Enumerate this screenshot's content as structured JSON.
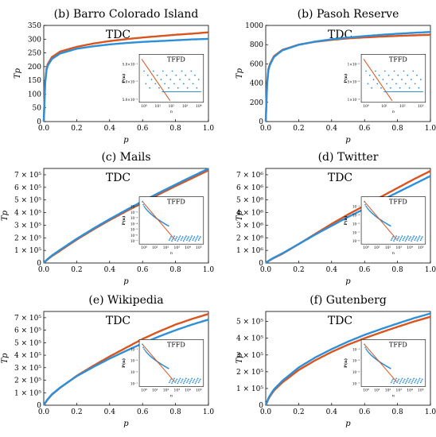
{
  "colors": {
    "model": "#d9541e",
    "data": "#2e8fd9"
  },
  "chart_data": [
    {
      "type": "line",
      "title": "(b) Barro Colorado Island",
      "panel_label": "TDC",
      "xlabel": "p",
      "ylabel": "T_p",
      "xlim": [
        0,
        1
      ],
      "ylim": [
        0,
        350
      ],
      "xticks": [
        "0.0",
        "0.2",
        "0.4",
        "0.6",
        "0.8",
        "1.0"
      ],
      "yticks": [
        "0",
        "50",
        "100",
        "150",
        "200",
        "250",
        "300",
        "350"
      ],
      "series": [
        {
          "key": "model",
          "x": [
            0,
            0.01,
            0.02,
            0.05,
            0.1,
            0.2,
            0.3,
            0.4,
            0.5,
            0.6,
            0.7,
            0.8,
            0.9,
            1.0
          ],
          "y": [
            0,
            170,
            205,
            235,
            255,
            272,
            284,
            293,
            300,
            306,
            311,
            316,
            320,
            325
          ]
        },
        {
          "key": "data",
          "x": [
            0,
            0.01,
            0.02,
            0.05,
            0.1,
            0.2,
            0.3,
            0.4,
            0.5,
            0.6,
            0.7,
            0.8,
            0.9,
            1.0
          ],
          "y": [
            0,
            165,
            200,
            228,
            248,
            265,
            274,
            281,
            286,
            290,
            293,
            296,
            299,
            301
          ]
        }
      ],
      "inset": {
        "label": "TFFD",
        "ylabel": "P(n)",
        "xlabel": "n",
        "kind": "sparse",
        "yticks": [
          "5.0×10⁻¹",
          "1.0×10⁻²",
          "5.0×10⁻³"
        ],
        "xticks": [
          "10⁰",
          "10¹",
          "10²",
          "10³",
          "10⁴"
        ]
      }
    },
    {
      "type": "line",
      "title": "(b) Pasoh Reserve",
      "panel_label": "TDC",
      "xlabel": "p",
      "ylabel": "T_p",
      "xlim": [
        0,
        1
      ],
      "ylim": [
        0,
        1000
      ],
      "xticks": [
        "0.0",
        "0.2",
        "0.4",
        "0.6",
        "0.8",
        "1.0"
      ],
      "yticks": [
        "0",
        "200",
        "400",
        "600",
        "800",
        "1000"
      ],
      "series": [
        {
          "key": "model",
          "x": [
            0,
            0.01,
            0.02,
            0.05,
            0.1,
            0.2,
            0.3,
            0.4,
            0.5,
            0.6,
            0.7,
            0.8,
            0.9,
            1.0
          ],
          "y": [
            0,
            480,
            580,
            680,
            745,
            800,
            830,
            850,
            865,
            875,
            884,
            891,
            897,
            903
          ]
        },
        {
          "key": "data",
          "x": [
            0,
            0.01,
            0.02,
            0.05,
            0.1,
            0.2,
            0.3,
            0.4,
            0.5,
            0.6,
            0.7,
            0.8,
            0.9,
            1.0
          ],
          "y": [
            0,
            470,
            570,
            672,
            740,
            798,
            832,
            856,
            874,
            889,
            902,
            913,
            923,
            932
          ]
        }
      ],
      "inset": {
        "label": "TFFD",
        "ylabel": "P(n)",
        "xlabel": "n",
        "kind": "sparse",
        "yticks": [
          "1×10⁻²",
          "5×10⁻³",
          "1×10⁻³"
        ],
        "xticks": [
          "10⁰",
          "10¹",
          "10²",
          "10³"
        ]
      }
    },
    {
      "type": "line",
      "title": "(c) Mails",
      "panel_label": "TDC",
      "xlabel": "p",
      "ylabel": "T_p",
      "xlim": [
        0,
        1
      ],
      "ylim": [
        0,
        750000
      ],
      "xticks": [
        "0.0",
        "0.2",
        "0.4",
        "0.6",
        "0.8",
        "1.0"
      ],
      "yticks": [
        "0",
        "1 × 10⁵",
        "2 × 10⁵",
        "3 × 10⁵",
        "4 × 10⁵",
        "5 × 10⁵",
        "6 × 10⁵",
        "7 × 10⁵"
      ],
      "series": [
        {
          "key": "model",
          "x": [
            0,
            0.02,
            0.05,
            0.1,
            0.2,
            0.3,
            0.4,
            0.5,
            0.6,
            0.7,
            0.8,
            0.9,
            1.0
          ],
          "y": [
            0,
            25000,
            55000,
            98000,
            185000,
            265000,
            340000,
            410000,
            478000,
            545000,
            610000,
            672000,
            735000
          ]
        },
        {
          "key": "data",
          "x": [
            0,
            0.02,
            0.05,
            0.1,
            0.2,
            0.3,
            0.4,
            0.5,
            0.6,
            0.7,
            0.8,
            0.9,
            1.0
          ],
          "y": [
            0,
            28000,
            60000,
            105000,
            192000,
            272000,
            348000,
            420000,
            490000,
            557000,
            622000,
            686000,
            748000
          ]
        }
      ],
      "inset": {
        "label": "TFFD",
        "ylabel": "P(n)",
        "xlabel": "n",
        "kind": "dense",
        "yticks": [
          "10⁻¹",
          "10⁻²",
          "10⁻³",
          "10⁻⁴",
          "10⁻⁵",
          "10⁻⁶",
          "10⁻⁷"
        ],
        "xticks": [
          "10⁰",
          "10¹",
          "10²",
          "10³",
          "10⁴",
          "10⁵"
        ]
      }
    },
    {
      "type": "line",
      "title": "(d) Twitter",
      "panel_label": "TDC",
      "xlabel": "p",
      "ylabel": "T_p",
      "xlim": [
        0,
        1
      ],
      "ylim": [
        0,
        7500000
      ],
      "xticks": [
        "0.0",
        "0.2",
        "0.4",
        "0.6",
        "0.8",
        "1.0"
      ],
      "yticks": [
        "0",
        "1 × 10⁶",
        "2 × 10⁶",
        "3 × 10⁶",
        "4 × 10⁶",
        "5 × 10⁶",
        "6 × 10⁶",
        "7 × 10⁶"
      ],
      "series": [
        {
          "key": "model",
          "x": [
            0,
            0.02,
            0.05,
            0.1,
            0.2,
            0.3,
            0.4,
            0.5,
            0.6,
            0.7,
            0.8,
            0.9,
            1.0
          ],
          "y": [
            0,
            180000,
            400000,
            720000,
            1500000,
            2300000,
            3100000,
            3850000,
            4550000,
            5250000,
            5950000,
            6650000,
            7300000
          ]
        },
        {
          "key": "data",
          "x": [
            0,
            0.02,
            0.05,
            0.1,
            0.2,
            0.3,
            0.4,
            0.5,
            0.6,
            0.7,
            0.8,
            0.9,
            1.0
          ],
          "y": [
            0,
            200000,
            430000,
            760000,
            1500000,
            2250000,
            2950000,
            3650000,
            4300000,
            4950000,
            5600000,
            6250000,
            6900000
          ]
        }
      ],
      "inset": {
        "label": "TFFD",
        "ylabel": "P(n)",
        "xlabel": "n",
        "kind": "dense",
        "yticks": [
          "10⁻¹",
          "10⁻³",
          "10⁻⁵",
          "10⁻⁷",
          "10⁻⁹"
        ],
        "xticks": [
          "10⁰",
          "10¹",
          "10²",
          "10³",
          "10⁴",
          "10⁵"
        ]
      }
    },
    {
      "type": "line",
      "title": "(e) Wikipedia",
      "panel_label": "TDC",
      "xlabel": "p",
      "ylabel": "T_p",
      "xlim": [
        0,
        1
      ],
      "ylim": [
        0,
        750000
      ],
      "xticks": [
        "0.0",
        "0.2",
        "0.4",
        "0.6",
        "0.8",
        "1.0"
      ],
      "yticks": [
        "0",
        "1 × 10⁵",
        "2 × 10⁵",
        "3 × 10⁵",
        "4 × 10⁵",
        "5 × 10⁵",
        "6 × 10⁵",
        "7 × 10⁵"
      ],
      "series": [
        {
          "key": "model",
          "x": [
            0,
            0.02,
            0.05,
            0.1,
            0.2,
            0.3,
            0.4,
            0.5,
            0.6,
            0.7,
            0.8,
            0.9,
            1.0
          ],
          "y": [
            0,
            40000,
            85000,
            140000,
            235000,
            315000,
            390000,
            460000,
            530000,
            590000,
            645000,
            690000,
            730000
          ]
        },
        {
          "key": "data",
          "x": [
            0,
            0.02,
            0.05,
            0.1,
            0.2,
            0.3,
            0.4,
            0.5,
            0.6,
            0.7,
            0.8,
            0.9,
            1.0
          ],
          "y": [
            0,
            42000,
            88000,
            142000,
            232000,
            305000,
            373000,
            435000,
            495000,
            550000,
            600000,
            645000,
            685000
          ]
        }
      ],
      "inset": {
        "label": "TFFD",
        "ylabel": "P(n)",
        "xlabel": "n",
        "kind": "dense",
        "yticks": [
          "10⁻¹",
          "10⁻³",
          "10⁻⁵",
          "10⁻⁷"
        ],
        "xticks": [
          "10⁰",
          "10¹",
          "10²",
          "10³",
          "10⁴",
          "10⁵"
        ]
      }
    },
    {
      "type": "line",
      "title": "(f) Gutenberg",
      "panel_label": "TDC",
      "xlabel": "p",
      "ylabel": "T_p",
      "xlim": [
        0,
        1
      ],
      "ylim": [
        0,
        560000
      ],
      "xticks": [
        "0.0",
        "0.2",
        "0.4",
        "0.6",
        "0.8",
        "1.0"
      ],
      "yticks": [
        "0",
        "1 × 10⁵",
        "2 × 10⁵",
        "3 × 10⁵",
        "4 × 10⁵",
        "5 × 10⁵"
      ],
      "series": [
        {
          "key": "model",
          "x": [
            0,
            0.02,
            0.05,
            0.1,
            0.2,
            0.3,
            0.4,
            0.5,
            0.6,
            0.7,
            0.8,
            0.9,
            1.0
          ],
          "y": [
            0,
            45000,
            88000,
            135000,
            210000,
            268000,
            318000,
            362000,
            400000,
            435000,
            468000,
            500000,
            528000
          ]
        },
        {
          "key": "data",
          "x": [
            0,
            0.02,
            0.05,
            0.1,
            0.2,
            0.3,
            0.4,
            0.5,
            0.6,
            0.7,
            0.8,
            0.9,
            1.0
          ],
          "y": [
            0,
            50000,
            95000,
            145000,
            225000,
            285000,
            335000,
            380000,
            420000,
            455000,
            488000,
            520000,
            548000
          ]
        }
      ],
      "inset": {
        "label": "TFFD",
        "ylabel": "P(n)",
        "xlabel": "n",
        "kind": "dense",
        "yticks": [
          "10⁻¹",
          "10⁻³",
          "10⁻⁵",
          "10⁻⁷"
        ],
        "xticks": [
          "10⁰",
          "10¹",
          "10²",
          "10³",
          "10⁴",
          "10⁵"
        ]
      }
    }
  ]
}
